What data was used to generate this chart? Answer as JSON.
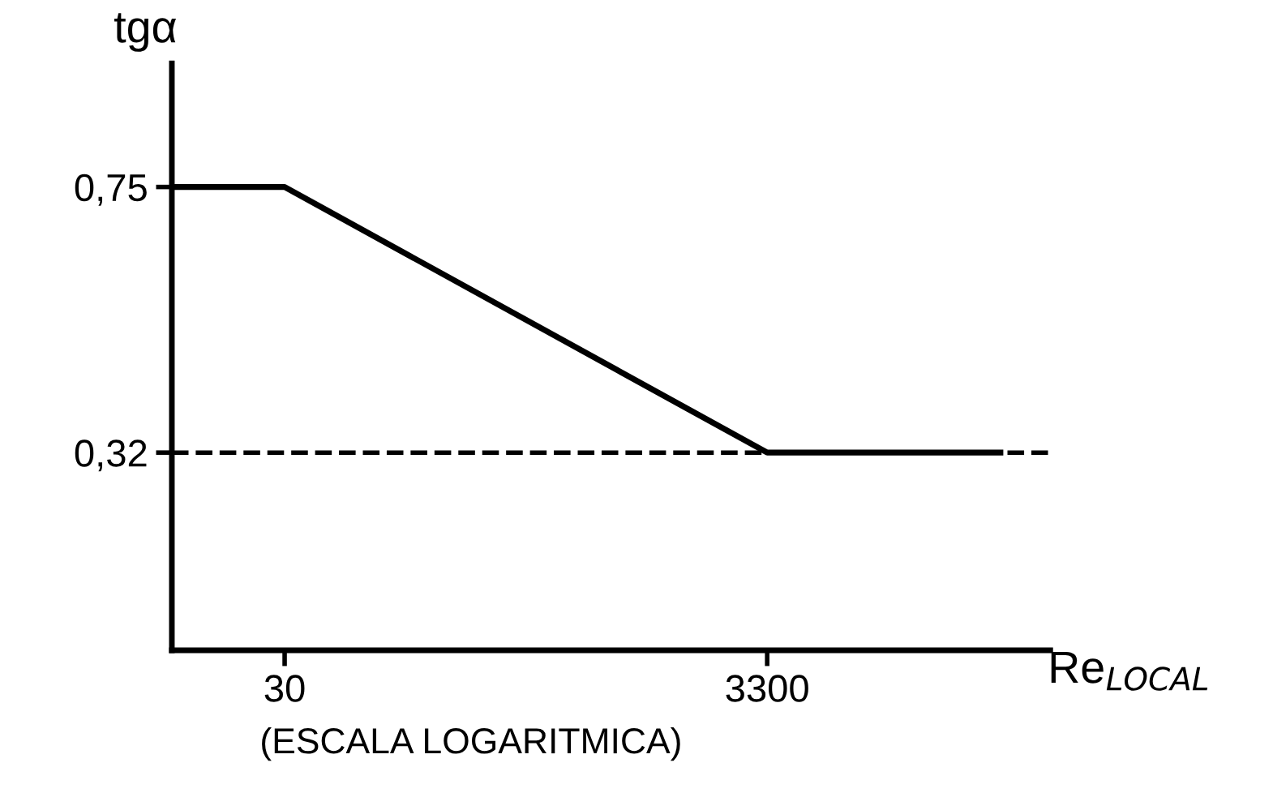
{
  "chart_data": {
    "type": "line",
    "xlabel": "Re$_{LOCAL}$",
    "ylabel": "tgα",
    "annotations": [
      "(ESCALA LOGARITMICA)"
    ],
    "log": "x",
    "x": [
      10,
      30,
      3300,
      32000
    ],
    "series": [
      {
        "color": "#000000",
        "values": [
          0.75,
          0.75,
          0.32,
          0.32
        ]
      }
    ],
    "xlim": [
      10,
      52000
    ],
    "ylim": [
      0,
      0.95
    ],
    "xticks": [
      30,
      3300
    ],
    "yticks": [
      {
        "value": 0.75,
        "label": "0,75"
      },
      {
        "value": 0.32,
        "label": "0,32"
      }
    ],
    "ref_lines": [
      {
        "axis": "y",
        "value": 0.32,
        "label": null,
        "color": "#000000",
        "line_style": "dashed"
      }
    ],
    "grid": false,
    "legend": false,
    "marker": "none",
    "line_style": "solid"
  }
}
